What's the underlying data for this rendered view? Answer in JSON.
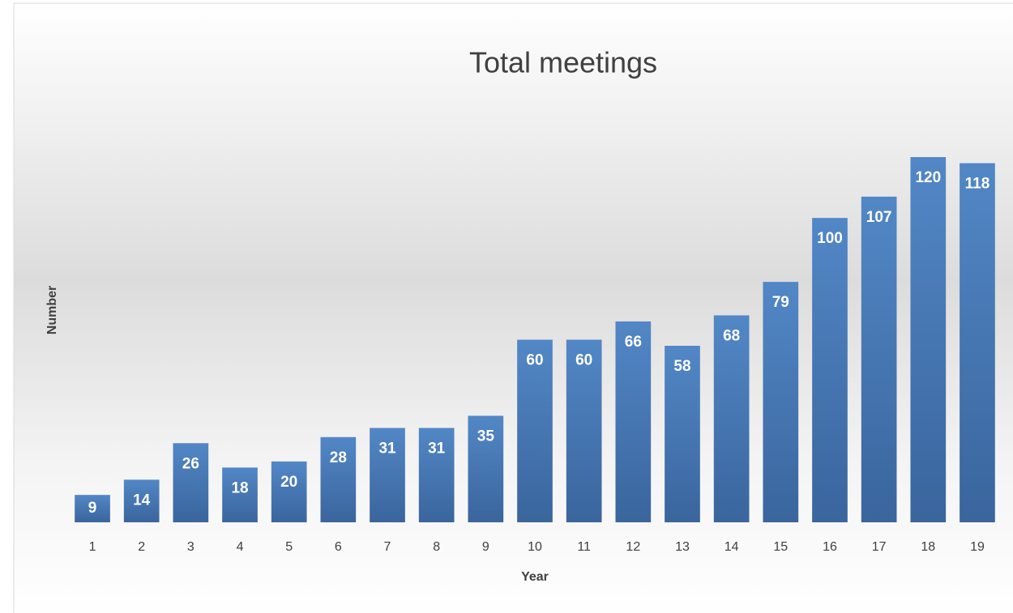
{
  "chart_data": {
    "type": "bar",
    "title": "Total meetings",
    "x_label": "Year",
    "y_label": "Number",
    "categories": [
      "1",
      "2",
      "3",
      "4",
      "5",
      "6",
      "7",
      "8",
      "9",
      "10",
      "11",
      "12",
      "13",
      "14",
      "15",
      "16",
      "17",
      "18",
      "19"
    ],
    "values": [
      9,
      14,
      26,
      18,
      20,
      28,
      31,
      31,
      35,
      60,
      60,
      66,
      58,
      68,
      79,
      100,
      107,
      120,
      118
    ],
    "color": "#4a7dbb",
    "ylim": [
      0,
      120
    ]
  }
}
